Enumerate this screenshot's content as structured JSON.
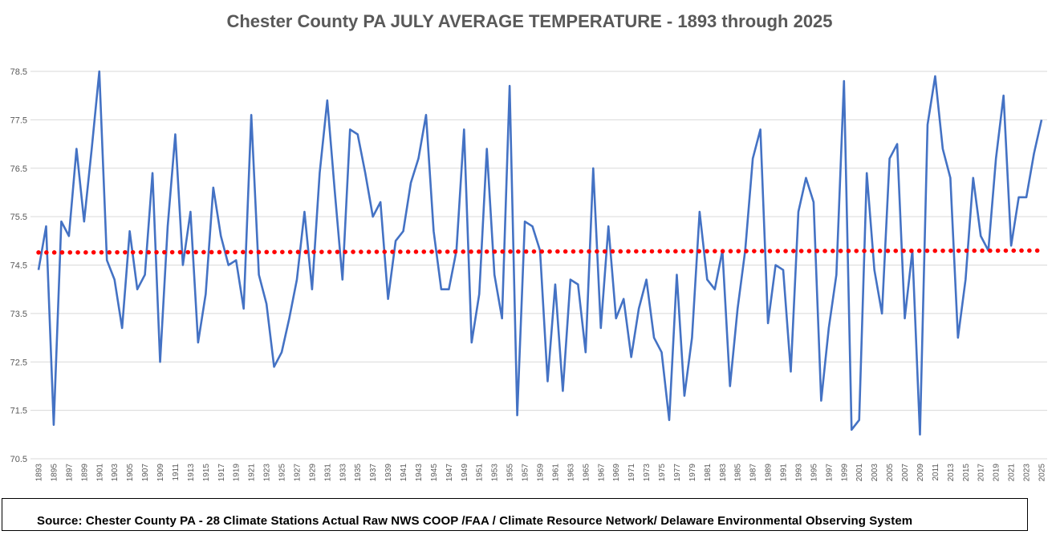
{
  "chart_data": {
    "type": "line",
    "title": "Chester County PA JULY AVERAGE TEMPERATURE - 1893 through 2025",
    "xlabel": "",
    "ylabel": "",
    "x_range": [
      1893,
      2025
    ],
    "ylim": [
      70.5,
      78.5
    ],
    "yticks": [
      70.5,
      71.5,
      72.5,
      73.5,
      74.5,
      75.5,
      76.5,
      77.5,
      78.5
    ],
    "xticks": [
      1893,
      1895,
      1897,
      1899,
      1901,
      1903,
      1905,
      1907,
      1909,
      1911,
      1913,
      1915,
      1917,
      1919,
      1921,
      1923,
      1925,
      1927,
      1929,
      1931,
      1933,
      1935,
      1937,
      1939,
      1941,
      1943,
      1945,
      1947,
      1949,
      1951,
      1953,
      1955,
      1957,
      1959,
      1961,
      1963,
      1965,
      1967,
      1969,
      1971,
      1973,
      1975,
      1977,
      1979,
      1981,
      1983,
      1985,
      1987,
      1989,
      1991,
      1993,
      1995,
      1997,
      1999,
      2001,
      2003,
      2005,
      2007,
      2009,
      2011,
      2013,
      2015,
      2017,
      2019,
      2021,
      2023,
      2025
    ],
    "grid": true,
    "legend": "none",
    "series": [
      {
        "color": "#4472c4",
        "style": "solid",
        "values": [
          74.4,
          75.3,
          71.2,
          75.4,
          75.1,
          76.9,
          75.4,
          76.9,
          78.5,
          74.6,
          74.2,
          73.2,
          75.2,
          74.0,
          74.3,
          76.4,
          72.5,
          75.3,
          77.2,
          74.5,
          75.6,
          72.9,
          73.9,
          76.1,
          75.1,
          74.5,
          74.6,
          73.6,
          77.6,
          74.3,
          73.7,
          72.4,
          72.7,
          73.4,
          74.2,
          75.6,
          74.0,
          76.4,
          77.9,
          76.0,
          74.2,
          77.3,
          77.2,
          76.4,
          75.5,
          75.8,
          73.8,
          75.0,
          75.2,
          76.2,
          76.7,
          77.6,
          75.2,
          74.0,
          74.0,
          74.8,
          77.3,
          72.9,
          73.9,
          76.9,
          74.3,
          73.4,
          78.2,
          71.4,
          75.4,
          75.3,
          74.8,
          72.1,
          74.1,
          71.9,
          74.2,
          74.1,
          72.7,
          76.5,
          73.2,
          75.3,
          73.4,
          73.8,
          72.6,
          73.6,
          74.2,
          73.0,
          72.7,
          71.3,
          74.3,
          71.8,
          73.0,
          75.6,
          74.2,
          74.0,
          74.8,
          72.0,
          73.6,
          74.8,
          76.7,
          77.3,
          73.3,
          74.5,
          74.4,
          72.3,
          75.6,
          76.3,
          75.8,
          71.7,
          73.2,
          74.3,
          78.3,
          71.1,
          71.3,
          76.4,
          74.4,
          73.5,
          76.7,
          77.0,
          73.4,
          74.8,
          71.0,
          77.4,
          78.4,
          76.9,
          76.3,
          73.0,
          74.2,
          76.3,
          75.1,
          74.8,
          76.7,
          78.0,
          74.9,
          75.9,
          75.9,
          76.8,
          77.5
        ]
      },
      {
        "color": "#ff0000",
        "style": "dotted",
        "values": [
          74.76,
          74.8
        ]
      }
    ]
  },
  "source": {
    "text": "Source: Chester County PA - 28 Climate Stations Actual Raw NWS COOP /FAA / Climate Resource Network/ Delaware Environmental Observing System"
  }
}
